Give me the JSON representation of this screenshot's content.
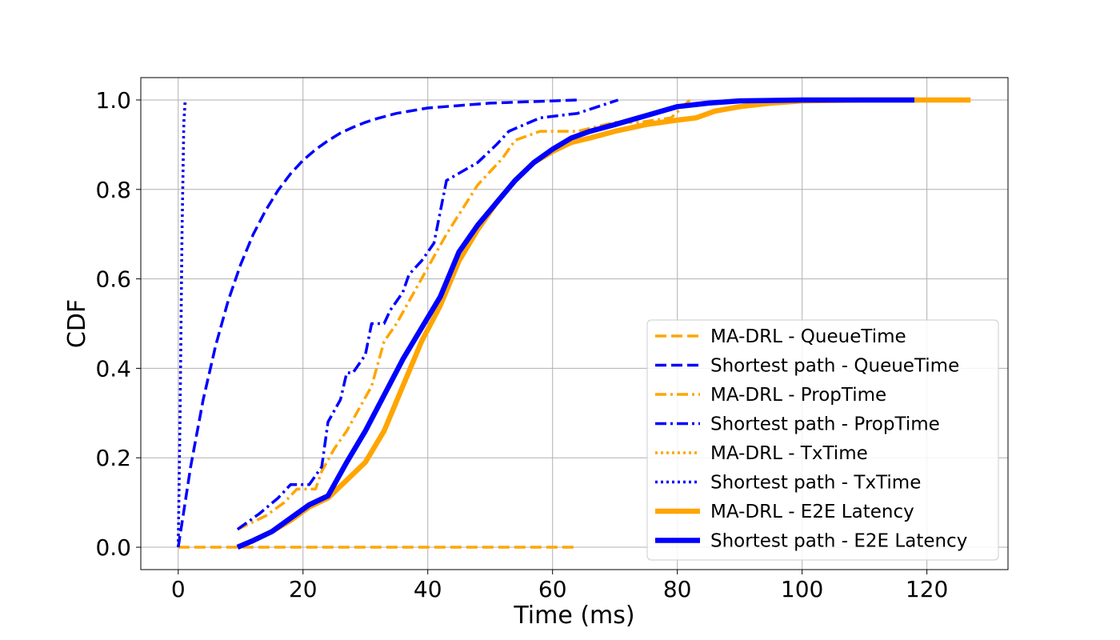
{
  "chart_data": {
    "type": "line",
    "title": "",
    "xlabel": "Time (ms)",
    "ylabel": "CDF",
    "xlim": [
      -6,
      133
    ],
    "ylim": [
      -0.05,
      1.05
    ],
    "xticks": [
      "0",
      "20",
      "40",
      "60",
      "80",
      "100",
      "120"
    ],
    "yticks": [
      "0.0",
      "0.2",
      "0.4",
      "0.6",
      "0.8",
      "1.0"
    ],
    "grid": true,
    "legend_position": "lower-right",
    "colors": {
      "ma_drl": "#FFA500",
      "shortest_path": "#0000FF"
    },
    "series": [
      {
        "name": "MA-DRL - QueueTime",
        "color": "#FFA500",
        "dash": "dashed",
        "width": "medium",
        "x": [
          0,
          64
        ],
        "y": [
          0,
          0
        ]
      },
      {
        "name": "Shortest path - QueueTime",
        "color": "#0000FF",
        "dash": "dashed",
        "width": "medium",
        "x": [
          0,
          2,
          4,
          6,
          8,
          10,
          12,
          14,
          16,
          18,
          20,
          22,
          24,
          26,
          28,
          30,
          32,
          35,
          40,
          50,
          64
        ],
        "y": [
          0.0,
          0.181,
          0.33,
          0.451,
          0.551,
          0.632,
          0.699,
          0.753,
          0.798,
          0.835,
          0.865,
          0.889,
          0.909,
          0.926,
          0.939,
          0.95,
          0.959,
          0.97,
          0.982,
          0.993,
          1.0
        ]
      },
      {
        "name": "MA-DRL - PropTime",
        "color": "#FFA500",
        "dash": "dashdot",
        "width": "medium",
        "x": [
          9.5,
          14,
          17,
          19,
          22,
          23,
          25,
          27,
          29,
          31,
          32,
          33,
          35,
          37,
          39,
          41,
          43,
          48,
          52,
          54,
          58,
          64,
          70,
          74,
          79,
          82
        ],
        "y": [
          0.04,
          0.07,
          0.1,
          0.13,
          0.13,
          0.17,
          0.22,
          0.26,
          0.31,
          0.36,
          0.41,
          0.46,
          0.5,
          0.55,
          0.6,
          0.65,
          0.7,
          0.81,
          0.87,
          0.91,
          0.93,
          0.93,
          0.95,
          0.95,
          0.96,
          1.0
        ]
      },
      {
        "name": "Shortest path - PropTime",
        "color": "#0000FF",
        "dash": "dashdot",
        "width": "medium",
        "x": [
          9.5,
          13,
          16,
          18,
          21,
          23,
          24,
          26,
          27,
          28,
          30,
          31,
          33,
          34,
          36,
          37,
          39,
          41,
          43,
          48,
          51,
          53,
          58,
          64,
          70.5
        ],
        "y": [
          0.04,
          0.075,
          0.11,
          0.14,
          0.14,
          0.18,
          0.28,
          0.33,
          0.39,
          0.39,
          0.43,
          0.5,
          0.5,
          0.53,
          0.57,
          0.61,
          0.64,
          0.68,
          0.82,
          0.86,
          0.9,
          0.93,
          0.96,
          0.97,
          1.0
        ]
      },
      {
        "name": "MA-DRL - TxTime",
        "color": "#FFA500",
        "dash": "dotted",
        "width": "medium",
        "x": [
          0,
          0.3,
          0.6,
          0.9,
          1.2
        ],
        "y": [
          0.0,
          0.3,
          0.7,
          0.95,
          1.0
        ]
      },
      {
        "name": "Shortest path - TxTime",
        "color": "#0000FF",
        "dash": "dotted",
        "width": "medium",
        "x": [
          0,
          0.3,
          0.6,
          0.9,
          1.1
        ],
        "y": [
          0.0,
          0.3,
          0.7,
          0.95,
          1.0
        ]
      },
      {
        "name": "MA-DRL - E2E Latency",
        "color": "#FFA500",
        "dash": "solid",
        "width": "thick",
        "x": [
          9.5,
          12,
          15,
          18,
          21,
          24,
          27,
          30,
          33,
          36,
          39,
          42,
          45,
          48,
          51,
          54,
          57,
          60,
          63,
          66,
          70,
          75,
          80,
          83,
          86,
          90,
          95,
          100,
          110,
          127
        ],
        "y": [
          0.0,
          0.015,
          0.035,
          0.06,
          0.09,
          0.11,
          0.15,
          0.19,
          0.26,
          0.36,
          0.46,
          0.54,
          0.64,
          0.71,
          0.77,
          0.82,
          0.86,
          0.885,
          0.905,
          0.915,
          0.93,
          0.945,
          0.955,
          0.96,
          0.975,
          0.985,
          0.993,
          0.998,
          1.0,
          1.0
        ]
      },
      {
        "name": "Shortest path - E2E Latency",
        "color": "#0000FF",
        "dash": "solid",
        "width": "thick",
        "x": [
          9.5,
          12,
          15,
          18,
          21,
          24,
          27,
          30,
          33,
          36,
          39,
          42,
          45,
          48,
          51,
          54,
          57,
          60,
          63,
          66,
          70,
          75,
          80,
          85,
          90,
          100,
          118
        ],
        "y": [
          0.0,
          0.015,
          0.035,
          0.065,
          0.095,
          0.115,
          0.19,
          0.26,
          0.34,
          0.42,
          0.49,
          0.56,
          0.66,
          0.72,
          0.77,
          0.82,
          0.86,
          0.89,
          0.915,
          0.93,
          0.945,
          0.965,
          0.985,
          0.993,
          0.998,
          1.0,
          1.0
        ]
      }
    ]
  }
}
